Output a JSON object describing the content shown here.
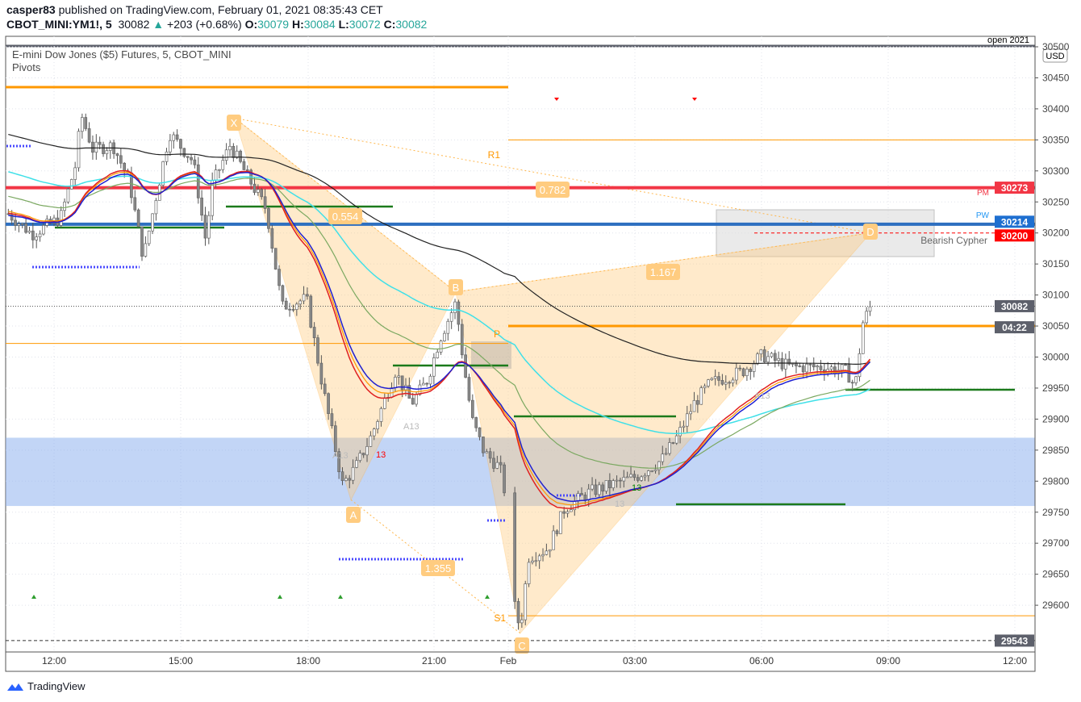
{
  "header": {
    "author": "casper83",
    "published": "published on TradingView.com, February 01, 2021 08:35:43 CET",
    "symbol": "CBOT_MINI:YM1!, 5",
    "last": "30082",
    "change": "+203 (+0.68%)",
    "o_label": "O:",
    "o": "30079",
    "h_label": "H:",
    "h": "30084",
    "l_label": "L:",
    "l": "30072",
    "c_label": "C:",
    "c": "30082"
  },
  "legend": {
    "title": "E-mini Dow Jones ($5) Futures, 5, CBOT_MINI",
    "indicator": "Pivots"
  },
  "top_right_label": "open 2021",
  "currency": "USD",
  "logo": "TradingView",
  "colors": {
    "up": "#26a69a",
    "candle": "#7b7b7b",
    "orange": "#ff9800",
    "red": "#f23645",
    "blue": "#2d6fc0",
    "green": "#1b7a1b",
    "zone": "#8fb3ee"
  },
  "chart_data": {
    "type": "candlestick",
    "ylim": [
      29520,
      30540
    ],
    "y_ticks": [
      30500,
      30450,
      30400,
      30350,
      30300,
      30250,
      30200,
      30150,
      30100,
      30050,
      30000,
      29950,
      29900,
      29850,
      29800,
      29750,
      29700,
      29650,
      29600
    ],
    "x_ticks": [
      "12:00",
      "15:00",
      "18:00",
      "21:00",
      "Feb",
      "03:00",
      "06:00",
      "09:00",
      "12:00"
    ],
    "close_path": [
      [
        "01-31 10:55",
        30231
      ],
      [
        "01-31 11:29",
        30198
      ],
      [
        "01-31 12:09",
        30224
      ],
      [
        "01-31 12:32",
        30315
      ],
      [
        "01-31 12:38",
        30393
      ],
      [
        "01-31 12:55",
        30335
      ],
      [
        "01-31 13:24",
        30341
      ],
      [
        "01-31 13:47",
        30283
      ],
      [
        "01-31 14:07",
        30159
      ],
      [
        "01-31 14:21",
        30237
      ],
      [
        "01-31 14:44",
        30361
      ],
      [
        "01-31 15:18",
        30315
      ],
      [
        "01-31 15:36",
        30185
      ],
      [
        "01-31 15:44",
        30276
      ],
      [
        "01-31 16:10",
        30341
      ],
      [
        "01-31 16:39",
        30283
      ],
      [
        "01-31 17:02",
        30237
      ],
      [
        "01-31 17:24",
        30081
      ],
      [
        "01-31 17:59",
        30094
      ],
      [
        "01-31 18:22",
        29951
      ],
      [
        "01-31 18:50",
        29795
      ],
      [
        "01-31 19:08",
        29821
      ],
      [
        "01-31 19:31",
        29873
      ],
      [
        "01-31 20:05",
        29977
      ],
      [
        "01-31 20:28",
        29925
      ],
      [
        "01-31 20:51",
        29964
      ],
      [
        "01-31 21:08",
        30029
      ],
      [
        "01-31 21:31",
        30088
      ],
      [
        "01-31 21:42",
        29990
      ],
      [
        "01-31 21:54",
        29899
      ],
      [
        "01-31 22:11",
        29847
      ],
      [
        "01-31 22:34",
        29821
      ],
      [
        "01-31 22:43",
        29769
      ],
      [
        "02-01 00:06",
        29613
      ],
      [
        "02-01 00:17",
        29561
      ],
      [
        "02-01 00:29",
        29678
      ],
      [
        "02-01 00:57",
        29691
      ],
      [
        "02-01 01:20",
        29756
      ],
      [
        "02-01 01:55",
        29782
      ],
      [
        "02-01 02:29",
        29795
      ],
      [
        "02-01 03:03",
        29808
      ],
      [
        "02-01 03:38",
        29834
      ],
      [
        "02-01 04:01",
        29873
      ],
      [
        "02-01 04:24",
        29925
      ],
      [
        "02-01 04:47",
        29958
      ],
      [
        "02-01 05:33",
        29977
      ],
      [
        "02-01 06:01",
        30003
      ],
      [
        "02-01 06:41",
        29984
      ],
      [
        "02-01 07:27",
        29984
      ],
      [
        "02-01 08:01",
        29977
      ],
      [
        "02-01 08:13",
        29951
      ],
      [
        "02-01 08:24",
        30055
      ],
      [
        "02-01 08:35",
        30082
      ]
    ],
    "levels": [
      {
        "name": "R1",
        "price": 30350
      },
      {
        "name": "PM",
        "price": 30273
      },
      {
        "name": "PW",
        "price": 30214
      },
      {
        "name": "",
        "price": 30200
      },
      {
        "name": "P",
        "price": 30050
      },
      {
        "name": "S1",
        "price": 29583
      },
      {
        "name": "",
        "price": 29543
      }
    ],
    "level_badges": [
      {
        "text": "30273",
        "price": 30273,
        "color": "#f23645"
      },
      {
        "text": "30214",
        "price": 30214,
        "color": "#1e6fd0"
      },
      {
        "text": "30200",
        "price": 30200,
        "color": "#ff0000"
      },
      {
        "text": "30082",
        "price": 30082,
        "color": "#5d606b"
      },
      {
        "text": "04:22",
        "price": 30048,
        "color": "#5d606b"
      },
      {
        "text": "29543",
        "price": 29543,
        "color": "#5d606b"
      }
    ],
    "pattern": {
      "name": "Bearish Cypher",
      "points": [
        {
          "label": "X",
          "t": "01-31 16:17",
          "price": 30385
        },
        {
          "label": "A",
          "t": "01-31 19:02",
          "price": 29770
        },
        {
          "label": "B",
          "t": "01-31 21:31",
          "price": 30105
        },
        {
          "label": "C",
          "t": "02-01 00:17",
          "price": 29555
        },
        {
          "label": "D",
          "t": "02-01 08:35",
          "price": 30200
        }
      ],
      "ratios": [
        "0.554",
        "0.782",
        "1.167",
        "1.355"
      ]
    },
    "zone": [
      29760,
      29870
    ],
    "markers": [
      "A13",
      "A13",
      "A13",
      "13",
      "13",
      "A13"
    ]
  }
}
